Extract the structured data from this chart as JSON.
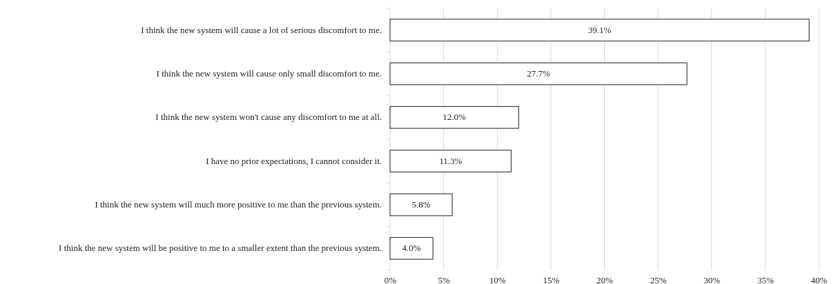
{
  "chart_data": {
    "type": "bar",
    "orientation": "horizontal",
    "categories": [
      "I think the new system will cause a lot of serious discomfort to me.",
      "I think the new system will cause only small discomfort to me.",
      "I think the new system won't cause any discomfort to me at all.",
      "I have no prior expectations, I cannot consider it.",
      "I think the new system will much more positive to me than the previous system.",
      "I think the new system will be positive to me to a smaller extent than the previous system."
    ],
    "values": [
      39.1,
      27.7,
      12.0,
      11.3,
      5.8,
      4.0
    ],
    "value_labels": [
      "39.1%",
      "27.7%",
      "12.0%",
      "11.3%",
      "5.8%",
      "4.0%"
    ],
    "color": "#ffffff",
    "xlim": [
      0,
      40
    ],
    "xticks": [
      {
        "value": 0,
        "label": "0%"
      },
      {
        "value": 5,
        "label": "5%"
      },
      {
        "value": 10,
        "label": "10%"
      },
      {
        "value": 15,
        "label": "15%"
      },
      {
        "value": 20,
        "label": "20%"
      },
      {
        "value": 25,
        "label": "25%"
      },
      {
        "value": 30,
        "label": "30%"
      },
      {
        "value": 35,
        "label": "35%"
      },
      {
        "value": 40,
        "label": "40%"
      }
    ],
    "grid": "x"
  }
}
